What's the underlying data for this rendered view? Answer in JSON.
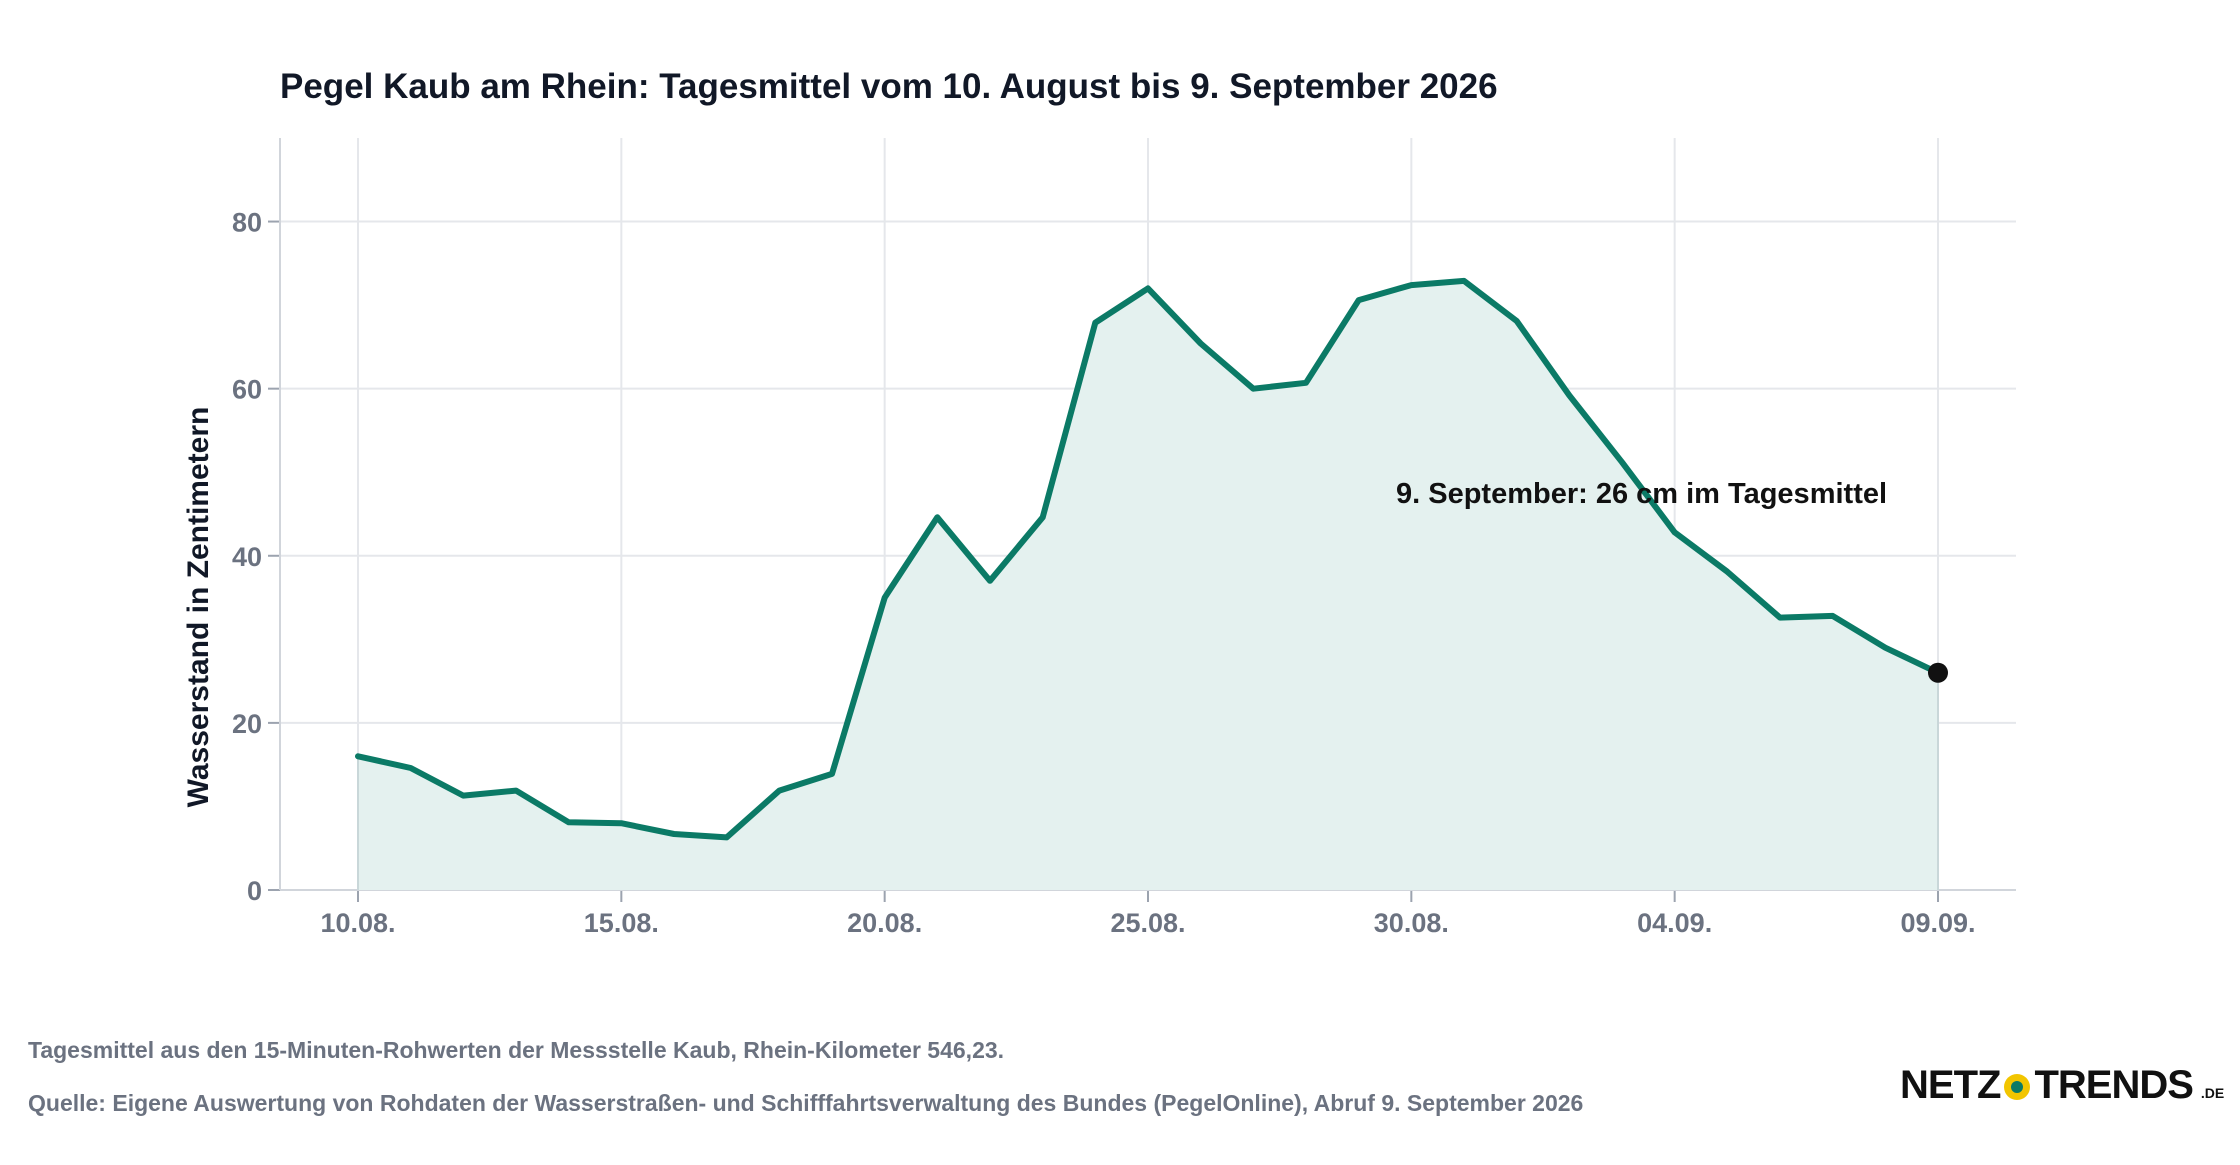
{
  "chart_data": {
    "type": "area",
    "title": "Pegel Kaub am Rhein: Tagesmittel vom 10. August bis 9. September 2026",
    "ylabel": "Wasserstand in Zentimetern",
    "xlabel": "",
    "ylim": [
      0,
      90
    ],
    "yticks": [
      0,
      20,
      40,
      60,
      80
    ],
    "xticks": [
      "10.08.",
      "15.08.",
      "20.08.",
      "25.08.",
      "30.08.",
      "04.09.",
      "09.09."
    ],
    "grid": true,
    "series": [
      {
        "x": [
          "10.08.",
          "11.08.",
          "12.08.",
          "13.08.",
          "14.08.",
          "15.08.",
          "16.08.",
          "17.08.",
          "18.08.",
          "19.08.",
          "20.08.",
          "21.08.",
          "22.08.",
          "23.08.",
          "24.08.",
          "25.08.",
          "26.08.",
          "27.08.",
          "28.08.",
          "29.08.",
          "30.08.",
          "31.08.",
          "01.09.",
          "02.09.",
          "03.09.",
          "04.09.",
          "05.09.",
          "06.09.",
          "07.09.",
          "08.09.",
          "09.09."
        ],
        "values": [
          16,
          14.6,
          11.3,
          11.9,
          8.1,
          8,
          6.7,
          6.3,
          11.9,
          13.9,
          35,
          44.6,
          37,
          44.6,
          67.9,
          72,
          65.4,
          60,
          60.7,
          70.6,
          72.4,
          72.9,
          68.1,
          59.2,
          51.2,
          42.8,
          38.1,
          32.6,
          32.8,
          29,
          26
        ]
      }
    ],
    "highlight": {
      "x": "09.09.",
      "value": 26
    },
    "annotation": "9. September: 26 cm im Tagesmittel",
    "colors": {
      "line": "#0b7a66",
      "fill": "#e4f1ef",
      "marker": "#111111",
      "grid": "#e5e7eb",
      "ticks": "#6b7280"
    }
  },
  "footer": {
    "note": "Tagesmittel aus den 15-Minuten-Rohwerten der Messstelle Kaub, Rhein-Kilometer 546,23.",
    "source": "Quelle: Eigene Auswertung von Rohdaten der Wasserstraßen- und Schifffahrtsverwaltung des Bundes (PegelOnline), Abruf 9. September 2026"
  },
  "logo": {
    "part1": "NETZ",
    "part2": "TRENDS",
    "tld": ".DE"
  }
}
